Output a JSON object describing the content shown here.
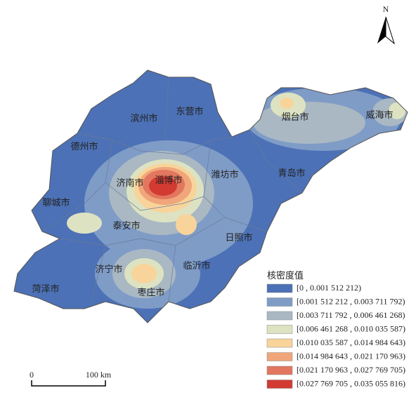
{
  "north": "N",
  "cities": [
    "滨州市",
    "东营市",
    "德州市",
    "烟台市",
    "威海市",
    "济南市",
    "淄博市",
    "潍坊市",
    "青岛市",
    "聊城市",
    "泰安市",
    "日照市",
    "济宁市",
    "临沂市",
    "菏泽市",
    "枣庄市"
  ],
  "legend": {
    "title": "核密度值",
    "items": [
      {
        "label": "[0 , 0.001 512 212)",
        "color": "#4c71b6"
      },
      {
        "label": "[0.001 512 212 , 0.003 711 792)",
        "color": "#7f9cc7"
      },
      {
        "label": "[0.003 711 792 , 0.006 461 268)",
        "color": "#a9b8c3"
      },
      {
        "label": "[0.006 461 268 , 0.010 035 587)",
        "color": "#dde3c2"
      },
      {
        "label": "[0.010 035 587 , 0.014 984 643)",
        "color": "#f8d49b"
      },
      {
        "label": "[0.014 984 643 , 0.021 170 963)",
        "color": "#f0a67a"
      },
      {
        "label": "[0.021 170 963 , 0.027 769 705)",
        "color": "#e2765e"
      },
      {
        "label": "[0.027 769 705 , 0.035 055 816)",
        "color": "#d23a32"
      }
    ]
  },
  "scale": {
    "start": "0",
    "end": "100 km"
  }
}
